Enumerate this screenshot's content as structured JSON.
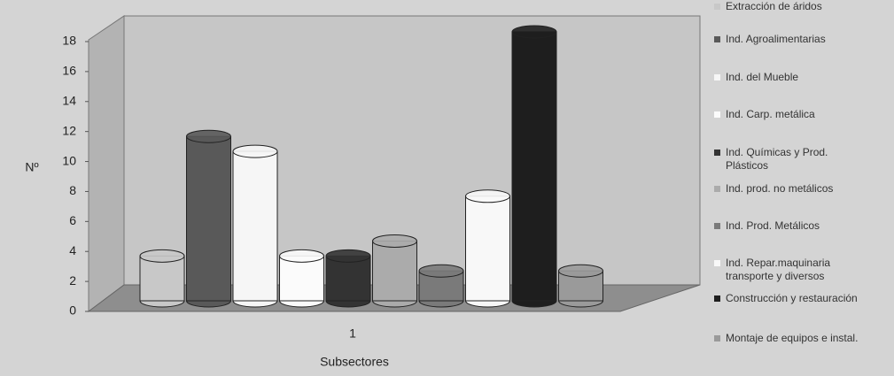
{
  "chart_data": {
    "type": "bar",
    "y_label": "Nº",
    "x_label": "Subsectores",
    "categories": [
      "1"
    ],
    "ylim": [
      0,
      18
    ],
    "yticks": [
      0,
      2,
      4,
      6,
      8,
      10,
      12,
      14,
      16,
      18
    ],
    "series": [
      {
        "name": "Extracción de áridos",
        "color": "#c8c8c8",
        "values": [
          3
        ]
      },
      {
        "name": "Ind. Agroalimentarias",
        "color": "#595959",
        "values": [
          11
        ]
      },
      {
        "name": "Ind. del Mueble",
        "color": "#f6f6f6",
        "values": [
          10
        ]
      },
      {
        "name": "Ind. Carp. metálica",
        "color": "#fbfbfb",
        "values": [
          3
        ]
      },
      {
        "name": "Ind. Químicas y Prod. Plásticos",
        "color": "#333333",
        "values": [
          3
        ]
      },
      {
        "name": "Ind. prod. no metálicos",
        "color": "#ababab",
        "values": [
          4
        ]
      },
      {
        "name": "Ind. Prod. Metálicos",
        "color": "#7a7a7a",
        "values": [
          2
        ]
      },
      {
        "name": "Ind. Repar.maquinaria transporte y diversos",
        "color": "#f8f8f8",
        "values": [
          7
        ]
      },
      {
        "name": "Construcción y restauración",
        "color": "#1e1e1e",
        "values": [
          18
        ]
      },
      {
        "name": "Montaje de equipos e instal.",
        "color": "#9a9a9a",
        "values": [
          2
        ]
      }
    ]
  }
}
